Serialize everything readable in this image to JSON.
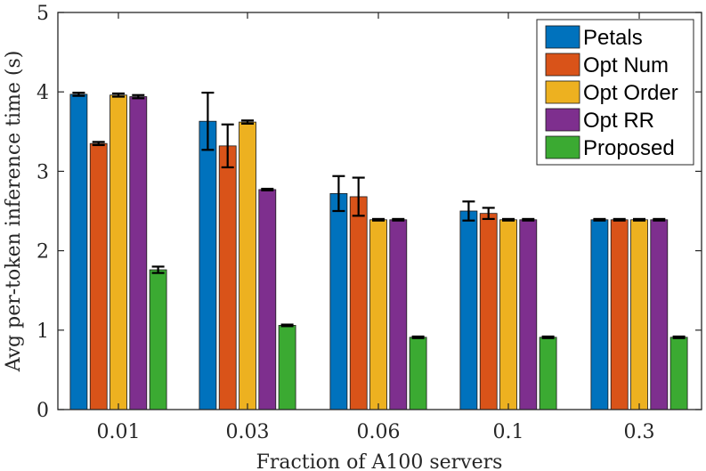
{
  "chart_data": {
    "type": "bar",
    "title": "",
    "xlabel": "Fraction of A100 servers",
    "ylabel": "Avg per-token inference time (s)",
    "ylim": [
      0,
      5
    ],
    "yticks": [
      0,
      1,
      2,
      3,
      4,
      5
    ],
    "categories": [
      "0.01",
      "0.03",
      "0.06",
      "0.1",
      "0.3"
    ],
    "legend_position": "top-right",
    "series": [
      {
        "name": "Petals",
        "color": "#0072BD",
        "values": [
          3.97,
          3.63,
          2.72,
          2.5,
          2.39
        ],
        "errors": [
          0.02,
          0.36,
          0.22,
          0.12,
          0.01
        ]
      },
      {
        "name": "Opt Num",
        "color": "#D95319",
        "values": [
          3.35,
          3.32,
          2.68,
          2.47,
          2.39
        ],
        "errors": [
          0.02,
          0.27,
          0.24,
          0.07,
          0.01
        ]
      },
      {
        "name": "Opt Order",
        "color": "#EDB120",
        "values": [
          3.96,
          3.62,
          2.39,
          2.39,
          2.39
        ],
        "errors": [
          0.02,
          0.02,
          0.01,
          0.01,
          0.01
        ]
      },
      {
        "name": "Opt RR",
        "color": "#7E2F8E",
        "values": [
          3.94,
          2.77,
          2.39,
          2.39,
          2.39
        ],
        "errors": [
          0.02,
          0.01,
          0.01,
          0.01,
          0.01
        ]
      },
      {
        "name": "Proposed",
        "color": "#3BAA32",
        "values": [
          1.76,
          1.06,
          0.91,
          0.91,
          0.91
        ],
        "errors": [
          0.04,
          0.01,
          0.01,
          0.01,
          0.01
        ]
      }
    ]
  }
}
